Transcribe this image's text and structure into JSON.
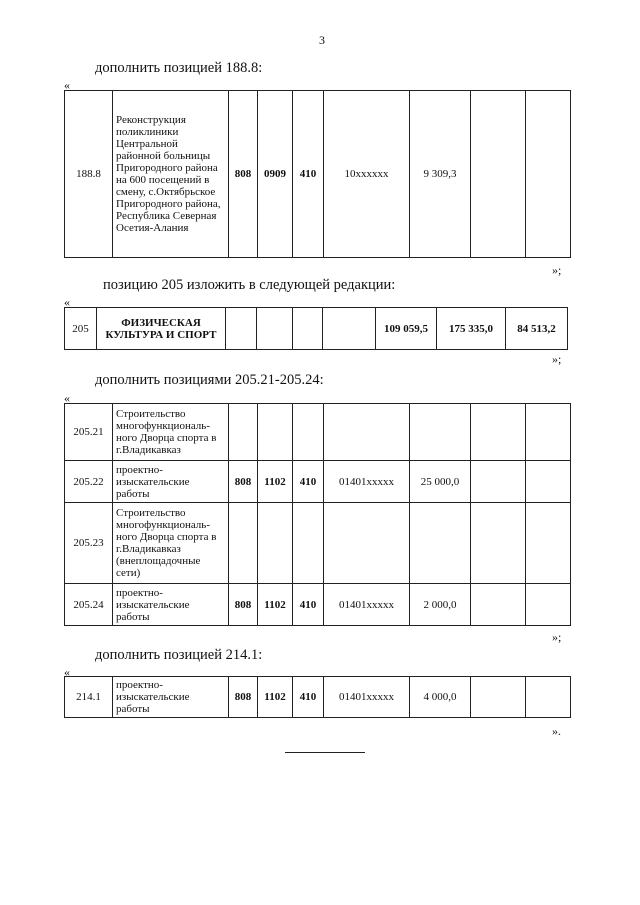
{
  "page_number": "3",
  "sections": [
    {
      "instruction": "дополнить позицией 188.8:",
      "open_quote": "«",
      "close_quote": "»;",
      "rows": [
        {
          "cells": [
            "188.8",
            "Реконструкция поликлиники Центральной районной больницы Пригородного района на 600 посещений в смену, с.Октябрьское Пригородного района, Республика Северная Осетия-Алания",
            "808",
            "0909",
            "410",
            "10xxxxxx",
            "9 309,3",
            "",
            ""
          ]
        }
      ]
    },
    {
      "instruction": "позицию 205 изложить в следующей редакции:",
      "open_quote": "«",
      "close_quote": "»;",
      "rows": [
        {
          "cells": [
            "205",
            "ФИЗИЧЕСКАЯ КУЛЬТУРА И СПОРТ",
            "",
            "",
            "",
            "",
            "109 059,5",
            "175 335,0",
            "84 513,2"
          ]
        }
      ]
    },
    {
      "instruction": "дополнить позициями 205.21-205.24:",
      "open_quote": "«",
      "close_quote": "»;",
      "rows": [
        {
          "cells": [
            "205.21",
            "Строительство многофункциональ-ного Дворца спорта в г.Владикавказ",
            "",
            "",
            "",
            "",
            "",
            "",
            ""
          ]
        },
        {
          "cells": [
            "205.22",
            "проектно-изыскательские работы",
            "808",
            "1102",
            "410",
            "01401xxxxx",
            "25 000,0",
            "",
            ""
          ]
        },
        {
          "cells": [
            "205.23",
            "Строительство многофункциональ-ного Дворца спорта в г.Владикавказ (внеплощадочные сети)",
            "",
            "",
            "",
            "",
            "",
            "",
            ""
          ]
        },
        {
          "cells": [
            "205.24",
            "проектно-изыскательские работы",
            "808",
            "1102",
            "410",
            "01401xxxxx",
            "2 000,0",
            "",
            ""
          ]
        }
      ]
    },
    {
      "instruction": "дополнить позицией 214.1:",
      "open_quote": "«",
      "close_quote": "».",
      "rows": [
        {
          "cells": [
            "214.1",
            "проектно-изыскательские работы",
            "808",
            "1102",
            "410",
            "01401xxxxx",
            "4 000,0",
            "",
            ""
          ]
        }
      ]
    }
  ]
}
